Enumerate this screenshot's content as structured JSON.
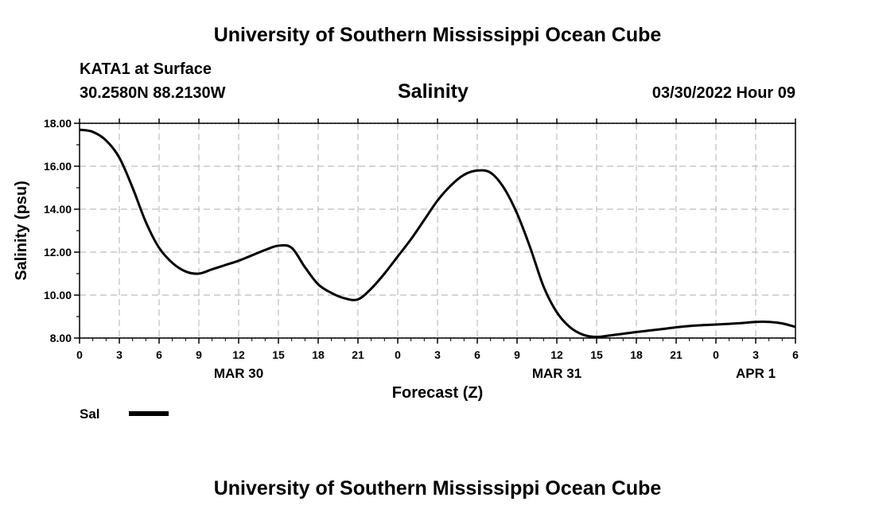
{
  "header": {
    "title_top": "University of Southern Mississippi Ocean Cube",
    "station": "KATA1 at Surface",
    "coords": "30.2580N  88.2130W",
    "variable": "Salinity",
    "datetime": "03/30/2022 Hour 09",
    "title_bottom": "University of Southern Mississippi Ocean Cube"
  },
  "legend": {
    "label": "Sal",
    "color": "#000000"
  },
  "chart_data": {
    "type": "line",
    "title": "Salinity",
    "xlabel": "Forecast (Z)",
    "ylabel": "Salinity (psu)",
    "ylim": [
      8,
      18
    ],
    "y_ticks": [
      "8.00",
      "10.00",
      "12.00",
      "14.00",
      "16.00",
      "18.00"
    ],
    "xlim": [
      0,
      54
    ],
    "x_ticks": [
      {
        "hour": 0,
        "label": "0"
      },
      {
        "hour": 3,
        "label": "3"
      },
      {
        "hour": 6,
        "label": "6"
      },
      {
        "hour": 9,
        "label": "9"
      },
      {
        "hour": 12,
        "label": "12"
      },
      {
        "hour": 15,
        "label": "15"
      },
      {
        "hour": 18,
        "label": "18"
      },
      {
        "hour": 21,
        "label": "21"
      },
      {
        "hour": 24,
        "label": "0"
      },
      {
        "hour": 27,
        "label": "3"
      },
      {
        "hour": 30,
        "label": "6"
      },
      {
        "hour": 33,
        "label": "9"
      },
      {
        "hour": 36,
        "label": "12"
      },
      {
        "hour": 39,
        "label": "15"
      },
      {
        "hour": 42,
        "label": "18"
      },
      {
        "hour": 45,
        "label": "21"
      },
      {
        "hour": 48,
        "label": "0"
      },
      {
        "hour": 51,
        "label": "3"
      },
      {
        "hour": 54,
        "label": "6"
      }
    ],
    "date_labels": [
      {
        "hour": 12,
        "label": "MAR 30"
      },
      {
        "hour": 36,
        "label": "MAR 31"
      },
      {
        "hour": 51,
        "label": "APR 1"
      }
    ],
    "grid": true,
    "series": [
      {
        "name": "Sal",
        "x": [
          0,
          1,
          2,
          3,
          4,
          5,
          6,
          7,
          8,
          9,
          10,
          11,
          12,
          13,
          14,
          15,
          16,
          17,
          18,
          19,
          20,
          21,
          22,
          23,
          24,
          25,
          26,
          27,
          28,
          29,
          30,
          31,
          32,
          33,
          34,
          35,
          36,
          37,
          38,
          39,
          40,
          41,
          42,
          43,
          44,
          45,
          46,
          47,
          48,
          49,
          50,
          51,
          52,
          53,
          54
        ],
        "values": [
          17.7,
          17.6,
          17.2,
          16.4,
          15.0,
          13.4,
          12.2,
          11.5,
          11.1,
          11.0,
          11.2,
          11.4,
          11.6,
          11.85,
          12.1,
          12.3,
          12.2,
          11.3,
          10.5,
          10.1,
          9.85,
          9.8,
          10.3,
          11.0,
          11.8,
          12.6,
          13.5,
          14.4,
          15.1,
          15.6,
          15.8,
          15.7,
          15.0,
          13.8,
          12.2,
          10.4,
          9.2,
          8.5,
          8.15,
          8.05,
          8.12,
          8.2,
          8.28,
          8.35,
          8.42,
          8.5,
          8.56,
          8.6,
          8.63,
          8.66,
          8.7,
          8.75,
          8.75,
          8.68,
          8.52
        ]
      }
    ]
  }
}
